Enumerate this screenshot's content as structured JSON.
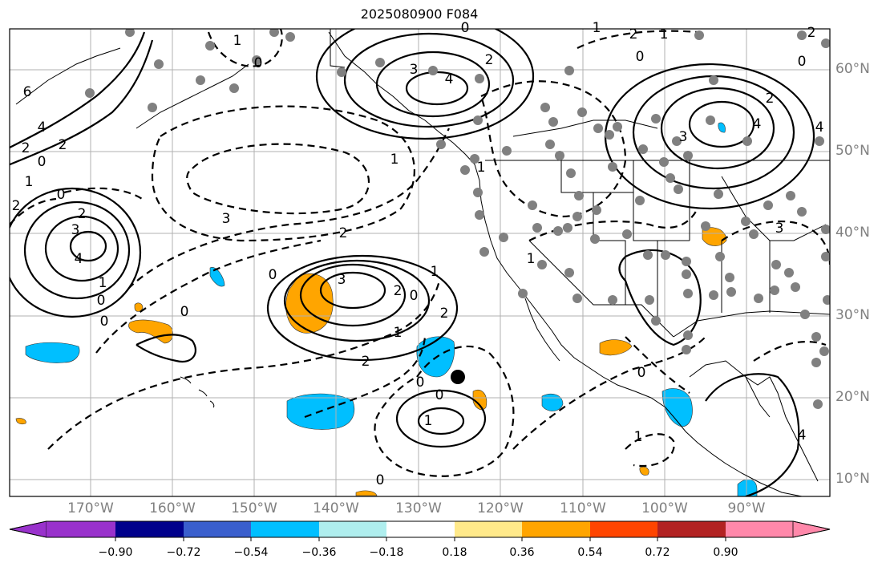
{
  "title": "2025080900 F084",
  "longitude_labels": [
    "170°W",
    "160°W",
    "150°W",
    "140°W",
    "130°W",
    "120°W",
    "110°W",
    "100°W",
    "90°W"
  ],
  "latitude_labels": [
    "60°N",
    "50°N",
    "40°N",
    "30°N",
    "20°N",
    "10°N"
  ],
  "colorbar": {
    "colors": [
      "#9932cc",
      "#00008b",
      "#3a5fcd",
      "#00bfff",
      "#afeeee",
      "#ffffff",
      "#ffe98a",
      "#ffa500",
      "#ff4500",
      "#b22222",
      "#ff88aa"
    ],
    "ticks": [
      "−0.90",
      "−0.72",
      "−0.54",
      "−0.36",
      "−0.18",
      "0.18",
      "0.36",
      "0.54",
      "0.72",
      "0.90"
    ]
  },
  "contour_labels": [
    "6",
    "4",
    "2",
    "0",
    "2",
    "1",
    "0",
    "2",
    "3",
    "4",
    "2",
    "0",
    "1",
    "3",
    "0",
    "2",
    "1",
    "0",
    "0",
    "0",
    "0",
    "3",
    "4",
    "1",
    "0",
    "3",
    "2",
    "1",
    "2",
    "1",
    "0",
    "2",
    "0",
    "2",
    "1",
    "0",
    "1",
    "1",
    "1",
    "0",
    "2",
    "4",
    "4",
    "3",
    "1",
    "0",
    "2",
    "2",
    "0",
    "1",
    "3",
    "4"
  ]
}
